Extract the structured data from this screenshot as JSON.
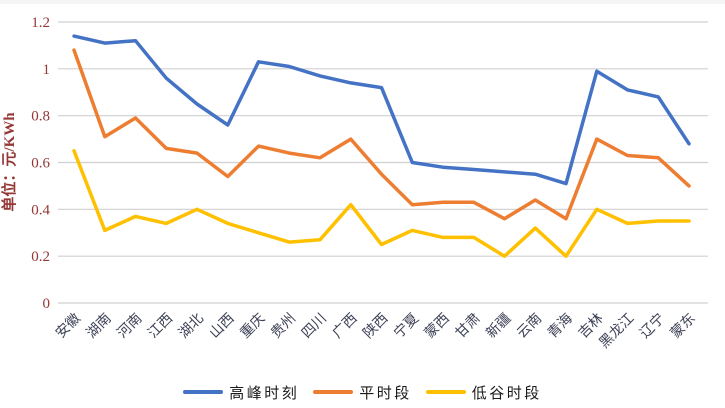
{
  "chart_data": {
    "type": "line",
    "title": "",
    "xlabel": "",
    "ylabel": "单位：元/KWh",
    "ylim": [
      0,
      1.2
    ],
    "ytick_labels": [
      "0",
      "0.2",
      "0.4",
      "0.6",
      "0.8",
      "1",
      "1.2"
    ],
    "ytick_values": [
      0,
      0.2,
      0.4,
      0.6,
      0.8,
      1.0,
      1.2
    ],
    "grid": "horizontal",
    "legend_position": "bottom",
    "categories": [
      "安徽",
      "湖南",
      "河南",
      "江西",
      "湖北",
      "山西",
      "重庆",
      "贵州",
      "四川",
      "广西",
      "陕西",
      "宁夏",
      "蒙西",
      "甘肃",
      "新疆",
      "云南",
      "青海",
      "吉林",
      "黑龙江",
      "辽宁",
      "蒙东"
    ],
    "series": [
      {
        "name": "高峰时刻",
        "color": "#4472C4",
        "values": [
          1.14,
          1.11,
          1.12,
          0.96,
          0.85,
          0.76,
          1.03,
          1.01,
          0.97,
          0.94,
          0.92,
          0.6,
          0.58,
          0.57,
          0.56,
          0.55,
          0.51,
          0.99,
          0.91,
          0.88,
          0.68
        ]
      },
      {
        "name": "平时段",
        "color": "#ED7D31",
        "values": [
          1.08,
          0.71,
          0.79,
          0.66,
          0.64,
          0.54,
          0.67,
          0.64,
          0.62,
          0.7,
          0.55,
          0.42,
          0.43,
          0.43,
          0.36,
          0.44,
          0.36,
          0.7,
          0.63,
          0.62,
          0.5
        ]
      },
      {
        "name": "低谷时段",
        "color": "#FFC000",
        "values": [
          0.65,
          0.31,
          0.37,
          0.34,
          0.4,
          0.34,
          0.3,
          0.26,
          0.27,
          0.42,
          0.25,
          0.31,
          0.28,
          0.28,
          0.2,
          0.32,
          0.2,
          0.4,
          0.34,
          0.35,
          0.35
        ]
      }
    ],
    "axis_label_color": "#953735",
    "category_label_color": "#3d4156",
    "gridline_color": "#d0d0d0"
  }
}
